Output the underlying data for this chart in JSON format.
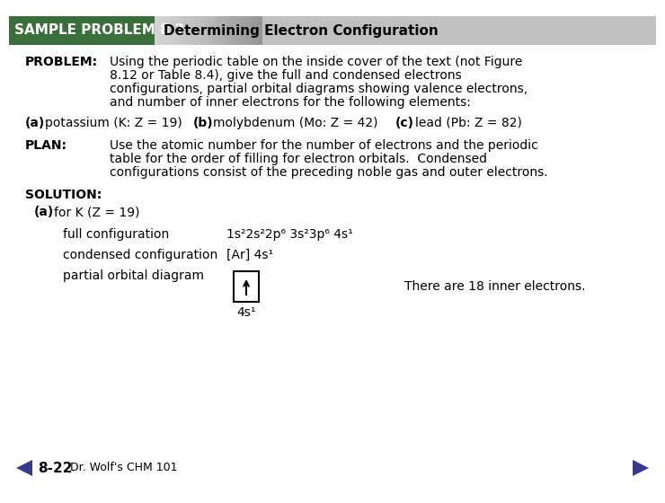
{
  "bg_color": "#ffffff",
  "header_text": "SAMPLE PROBLEM 8.2",
  "header_title": "Determining Electron Configuration",
  "problem_label": "PROBLEM:",
  "problem_text_lines": [
    "Using the periodic table on the inside cover of the text (not Figure",
    "8.12 or Table 8.4), give the full and condensed electrons",
    "configurations, partial orbital diagrams showing valence electrons,",
    "and number of inner electrons for the following elements:"
  ],
  "abc_label_a": "(a)",
  "abc_label_b": "(b)",
  "abc_label_c": "(c)",
  "abc_text_a": "potassium (K: Z = 19)",
  "abc_text_b": "molybdenum (Mo: Z = 42)",
  "abc_text_c": "lead (Pb: Z = 82)",
  "plan_label": "PLAN:",
  "plan_text_lines": [
    "Use the atomic number for the number of electrons and the periodic",
    "table for the order of filling for electron orbitals.  Condensed",
    "configurations consist of the preceding noble gas and outer electrons."
  ],
  "solution_label": "SOLUTION:",
  "solution_a_label": "(a)",
  "solution_a_text": "for K (Z = 19)",
  "full_config_label": "full configuration",
  "full_config_value": "1s²2s²2p⁶ 3s²3p⁶ 4s¹",
  "condensed_config_label": "condensed configuration",
  "condensed_config_value": "[Ar] 4s¹",
  "partial_orbital_label": "partial orbital diagram",
  "orbital_label": "4s¹",
  "inner_electrons_text": "There are 18 inner electrons.",
  "footer_left": "8-22",
  "footer_right": "Dr. Wolf's CHM 101",
  "nav_color": "#3a3a8c",
  "header_green": "#3a6e3a",
  "header_gray": "#c0c0c0"
}
